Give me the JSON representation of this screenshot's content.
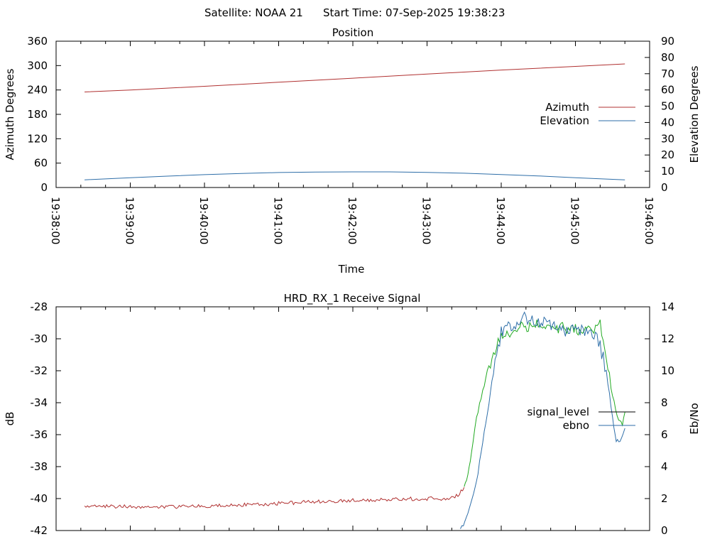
{
  "header": {
    "satellite_label": "Satellite: NOAA 21",
    "start_time_label": "Start Time: 07-Sep-2025 19:38:23"
  },
  "chart_data": [
    {
      "id": "position",
      "type": "line",
      "title": "Position",
      "xlabel": "Time",
      "ylabel_left": "Azimuth Degrees",
      "ylabel_right": "Elevation Degrees",
      "x_ticks": [
        "19:38:00",
        "19:39:00",
        "19:40:00",
        "19:41:00",
        "19:42:00",
        "19:43:00",
        "19:44:00",
        "19:45:00",
        "19:46:00"
      ],
      "xlim_seconds_from_first_tick": [
        0,
        480
      ],
      "y_left_ticks": [
        "0",
        "60",
        "120",
        "180",
        "240",
        "300",
        "360"
      ],
      "y_left_lim": [
        0,
        360
      ],
      "y_right_ticks": [
        "0",
        "10",
        "20",
        "30",
        "40",
        "50",
        "60",
        "70",
        "80",
        "90"
      ],
      "y_right_lim": [
        0,
        90
      ],
      "legend_position": "right",
      "series": [
        {
          "name": "Azimuth",
          "axis": "left",
          "color": "#b03030",
          "points": [
            [
              "19:38:23",
              235
            ],
            [
              "19:39:00",
              240
            ],
            [
              "19:40:00",
              249
            ],
            [
              "19:41:00",
              259
            ],
            [
              "19:42:00",
              269
            ],
            [
              "19:43:00",
              279
            ],
            [
              "19:44:00",
              289
            ],
            [
              "19:45:00",
              298
            ],
            [
              "19:45:40",
              304
            ]
          ]
        },
        {
          "name": "Elevation",
          "axis": "right",
          "color": "#2e6ea8",
          "points": [
            [
              "19:38:23",
              4.7
            ],
            [
              "19:39:00",
              6.0
            ],
            [
              "19:39:30",
              7.0
            ],
            [
              "19:40:00",
              7.9
            ],
            [
              "19:40:30",
              8.6
            ],
            [
              "19:41:00",
              9.2
            ],
            [
              "19:41:30",
              9.5
            ],
            [
              "19:42:00",
              9.6
            ],
            [
              "19:42:30",
              9.6
            ],
            [
              "19:43:00",
              9.3
            ],
            [
              "19:43:30",
              8.8
            ],
            [
              "19:44:00",
              8.0
            ],
            [
              "19:44:30",
              7.1
            ],
            [
              "19:45:00",
              6.0
            ],
            [
              "19:45:40",
              4.7
            ]
          ]
        }
      ]
    },
    {
      "id": "receive_signal",
      "type": "line",
      "title": "HRD_RX_1 Receive Signal",
      "ylabel_left": "dB",
      "ylabel_right": "Eb/No",
      "xlim_seconds_from_first_tick": [
        0,
        480
      ],
      "y_left_ticks": [
        "-42",
        "-40",
        "-38",
        "-36",
        "-34",
        "-32",
        "-30",
        "-28"
      ],
      "y_left_lim": [
        -42,
        -28
      ],
      "y_right_ticks": [
        "0",
        "2",
        "4",
        "6",
        "8",
        "10",
        "12",
        "14"
      ],
      "y_right_lim": [
        0,
        14
      ],
      "legend_position": "right",
      "legend": [
        {
          "name": "signal_level",
          "color": "#000000"
        },
        {
          "name": "ebno",
          "color": "#2e6ea8"
        }
      ],
      "series": [
        {
          "name": "signal_level (low)",
          "axis": "left",
          "color": "#b03030",
          "points": [
            [
              "19:38:23",
              -40.5
            ],
            [
              "19:39:00",
              -40.5
            ],
            [
              "19:40:00",
              -40.5
            ],
            [
              "19:41:00",
              -40.3
            ],
            [
              "19:42:00",
              -40.1
            ],
            [
              "19:43:00",
              -40.0
            ],
            [
              "19:43:15",
              -40.0
            ],
            [
              "19:43:25",
              -39.8
            ],
            [
              "19:43:30",
              -39.3
            ]
          ]
        },
        {
          "name": "signal_level (high)",
          "axis": "left",
          "color": "#22aa22",
          "points": [
            [
              "19:43:30",
              -39.3
            ],
            [
              "19:43:33",
              -38.6
            ],
            [
              "19:43:36",
              -37.0
            ],
            [
              "19:43:40",
              -35.0
            ],
            [
              "19:43:45",
              -33.2
            ],
            [
              "19:43:50",
              -32.0
            ],
            [
              "19:43:55",
              -30.8
            ],
            [
              "19:44:00",
              -29.8
            ],
            [
              "19:44:15",
              -29.3
            ],
            [
              "19:44:30",
              -29.1
            ],
            [
              "19:44:45",
              -29.3
            ],
            [
              "19:45:00",
              -29.4
            ],
            [
              "19:45:15",
              -29.6
            ],
            [
              "19:45:20",
              -29.0
            ],
            [
              "19:45:25",
              -31.0
            ],
            [
              "19:45:30",
              -33.5
            ],
            [
              "19:45:35",
              -35.2
            ],
            [
              "19:45:38",
              -35.3
            ],
            [
              "19:45:40",
              -34.6
            ]
          ]
        },
        {
          "name": "ebno",
          "axis": "right",
          "color": "#2e6ea8",
          "points": [
            [
              "19:43:27",
              0
            ],
            [
              "19:43:33",
              1.0
            ],
            [
              "19:43:40",
              3.0
            ],
            [
              "19:43:45",
              5.5
            ],
            [
              "19:43:50",
              8.0
            ],
            [
              "19:43:55",
              10.5
            ],
            [
              "19:44:00",
              12.4
            ],
            [
              "19:44:15",
              13.0
            ],
            [
              "19:44:20",
              13.3
            ],
            [
              "19:44:30",
              13.0
            ],
            [
              "19:44:45",
              12.7
            ],
            [
              "19:45:00",
              12.4
            ],
            [
              "19:45:10",
              12.5
            ],
            [
              "19:45:15",
              12.3
            ],
            [
              "19:45:20",
              11.5
            ],
            [
              "19:45:25",
              10.0
            ],
            [
              "19:45:30",
              7.0
            ],
            [
              "19:45:33",
              5.6
            ],
            [
              "19:45:36",
              5.6
            ],
            [
              "19:45:40",
              6.4
            ]
          ]
        }
      ]
    }
  ]
}
